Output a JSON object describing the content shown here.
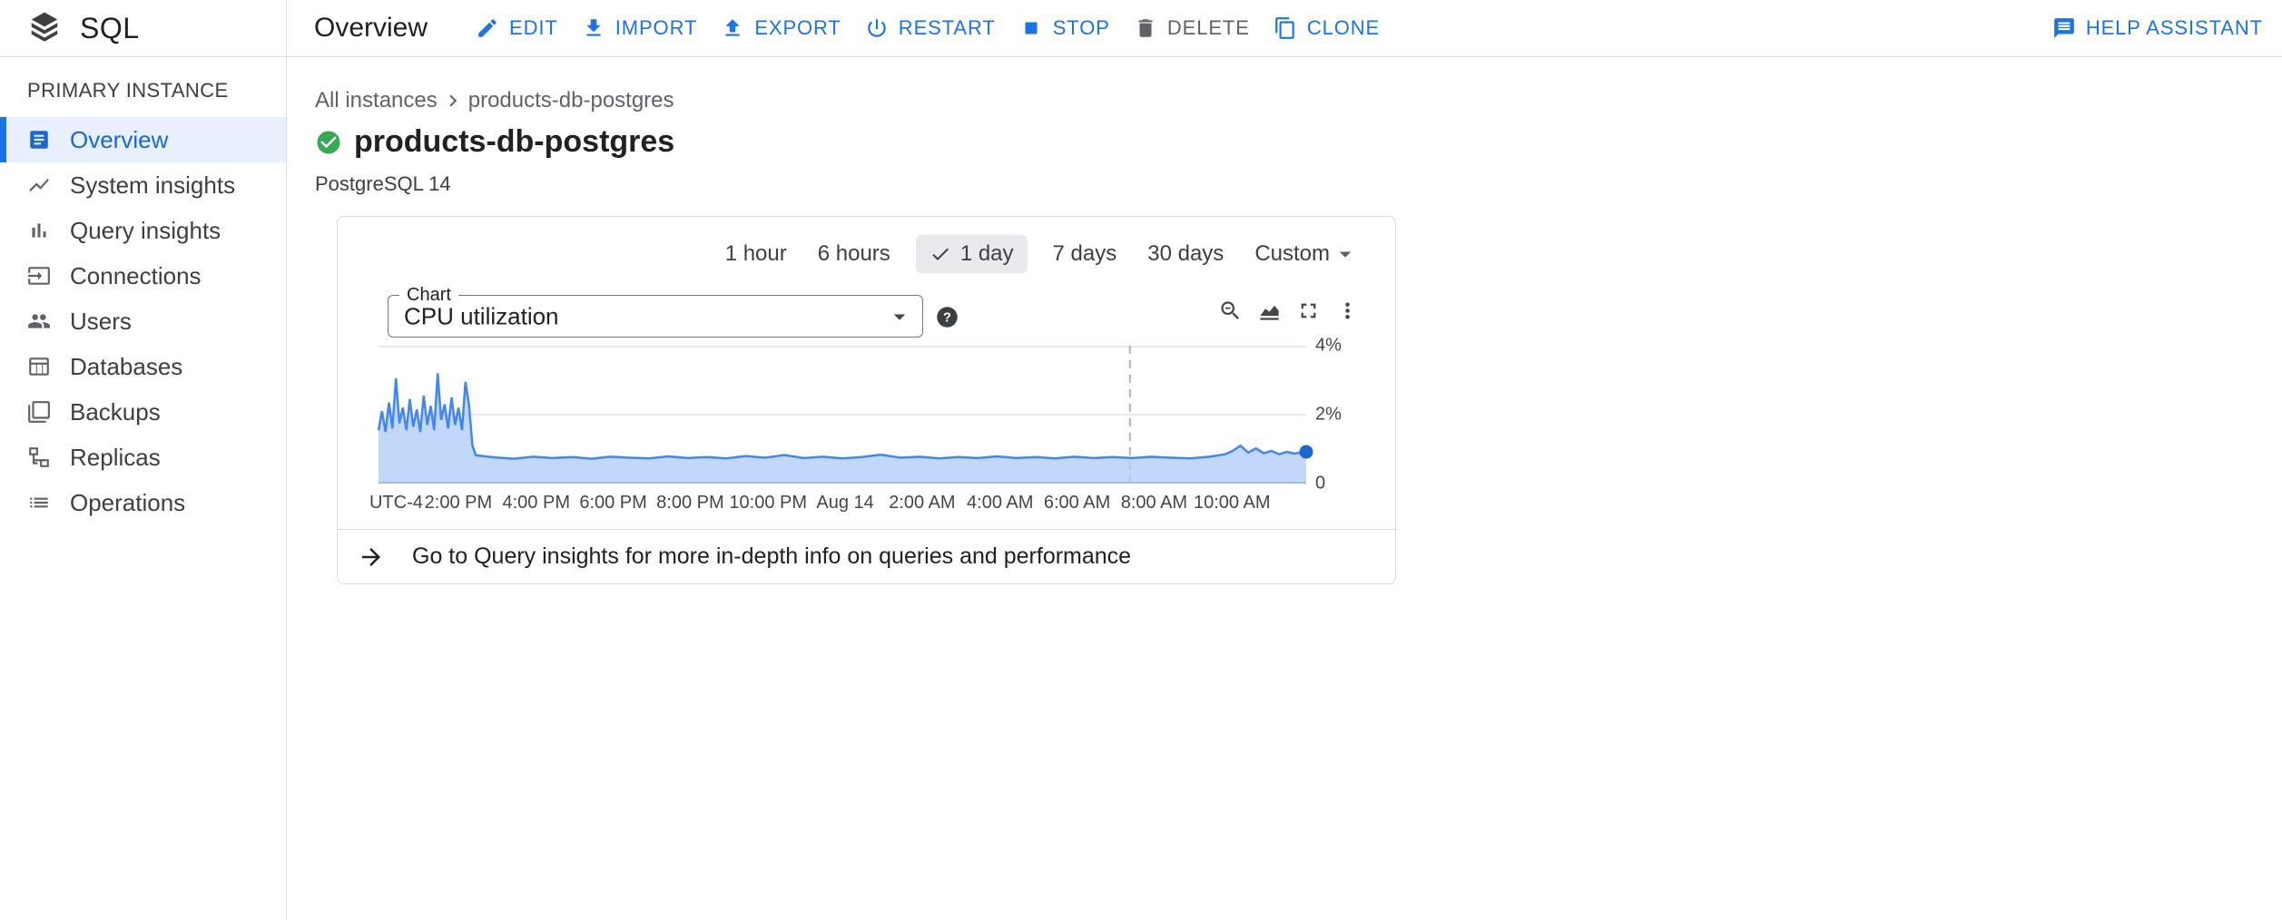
{
  "topbar": {
    "product": "SQL",
    "page_title": "Overview",
    "actions": [
      {
        "label": "EDIT",
        "icon": "edit-icon",
        "enabled": true
      },
      {
        "label": "IMPORT",
        "icon": "import-icon",
        "enabled": true
      },
      {
        "label": "EXPORT",
        "icon": "export-icon",
        "enabled": true
      },
      {
        "label": "RESTART",
        "icon": "restart-icon",
        "enabled": true
      },
      {
        "label": "STOP",
        "icon": "stop-icon",
        "enabled": true
      },
      {
        "label": "DELETE",
        "icon": "delete-icon",
        "enabled": false
      },
      {
        "label": "CLONE",
        "icon": "clone-icon",
        "enabled": true
      }
    ],
    "help_assistant": {
      "label": "HELP ASSISTANT",
      "icon": "help-assistant-icon"
    }
  },
  "sidebar": {
    "heading": "PRIMARY INSTANCE",
    "items": [
      {
        "label": "Overview",
        "icon": "overview-icon",
        "selected": true
      },
      {
        "label": "System insights",
        "icon": "system-insights-icon",
        "selected": false
      },
      {
        "label": "Query insights",
        "icon": "query-insights-icon",
        "selected": false
      },
      {
        "label": "Connections",
        "icon": "connections-icon",
        "selected": false
      },
      {
        "label": "Users",
        "icon": "users-icon",
        "selected": false
      },
      {
        "label": "Databases",
        "icon": "databases-icon",
        "selected": false
      },
      {
        "label": "Backups",
        "icon": "backups-icon",
        "selected": false
      },
      {
        "label": "Replicas",
        "icon": "replicas-icon",
        "selected": false
      },
      {
        "label": "Operations",
        "icon": "operations-icon",
        "selected": false
      }
    ]
  },
  "main": {
    "breadcrumb": {
      "parent": "All instances",
      "current": "products-db-postgres"
    },
    "instance": {
      "name": "products-db-postgres",
      "status": "healthy",
      "engine": "PostgreSQL 14"
    },
    "time_ranges": {
      "options": [
        {
          "label": "1 hour",
          "selected": false
        },
        {
          "label": "6 hours",
          "selected": false
        },
        {
          "label": "1 day",
          "selected": true
        },
        {
          "label": "7 days",
          "selected": false
        },
        {
          "label": "30 days",
          "selected": false
        },
        {
          "label": "Custom",
          "selected": false,
          "dropdown": true
        }
      ]
    },
    "chart_card": {
      "select_label": "Chart",
      "selected_metric": "CPU utilization",
      "tools": [
        "zoom-reset",
        "chart-type",
        "fullscreen",
        "more-options"
      ]
    },
    "footer_link": "Go to Query insights for more in-depth info on queries and performance"
  },
  "colors": {
    "accent_blue": "#1a73e8",
    "selected_nav_bg": "#e8f0fe",
    "status_green": "#34a853",
    "chart_line": "#4285f4",
    "chart_fill": "#aecbfa",
    "border": "#dadce0"
  },
  "chart_data": {
    "type": "area",
    "title": "CPU utilization",
    "unit": "%",
    "ylim": [
      0,
      4
    ],
    "y_axis_side": "right",
    "y_ticks": [
      {
        "label": "4%",
        "value": 4
      },
      {
        "label": "2%",
        "value": 2
      },
      {
        "label": "0",
        "value": 0
      }
    ],
    "x_span_hours": 24,
    "x_ticks": [
      {
        "label": "UTC-4",
        "pos": 0.019
      },
      {
        "label": "2:00 PM",
        "pos": 0.086
      },
      {
        "label": "4:00 PM",
        "pos": 0.17
      },
      {
        "label": "6:00 PM",
        "pos": 0.253
      },
      {
        "label": "8:00 PM",
        "pos": 0.336
      },
      {
        "label": "10:00 PM",
        "pos": 0.42
      },
      {
        "label": "Aug 14",
        "pos": 0.503
      },
      {
        "label": "2:00 AM",
        "pos": 0.586
      },
      {
        "label": "4:00 AM",
        "pos": 0.67
      },
      {
        "label": "6:00 AM",
        "pos": 0.753
      },
      {
        "label": "8:00 AM",
        "pos": 0.836
      },
      {
        "label": "10:00 AM",
        "pos": 0.92
      }
    ],
    "cursor_pos": 0.81,
    "series": [
      {
        "name": "CPU utilization",
        "points_hours_pct": [
          [
            0,
            1.55
          ],
          [
            0.09,
            2.1
          ],
          [
            0.18,
            1.5
          ],
          [
            0.27,
            2.35
          ],
          [
            0.36,
            1.6
          ],
          [
            0.45,
            3.05
          ],
          [
            0.54,
            1.75
          ],
          [
            0.63,
            2.2
          ],
          [
            0.72,
            1.55
          ],
          [
            0.81,
            2.45
          ],
          [
            0.9,
            1.65
          ],
          [
            0.99,
            2.15
          ],
          [
            1.08,
            1.5
          ],
          [
            1.17,
            2.55
          ],
          [
            1.26,
            1.7
          ],
          [
            1.35,
            2.25
          ],
          [
            1.44,
            1.55
          ],
          [
            1.53,
            3.2
          ],
          [
            1.62,
            1.85
          ],
          [
            1.71,
            2.3
          ],
          [
            1.8,
            1.6
          ],
          [
            1.89,
            2.5
          ],
          [
            1.98,
            1.7
          ],
          [
            2.07,
            2.2
          ],
          [
            2.16,
            1.55
          ],
          [
            2.25,
            2.95
          ],
          [
            2.34,
            2.3
          ],
          [
            2.43,
            1.1
          ],
          [
            2.52,
            0.82
          ],
          [
            3,
            0.76
          ],
          [
            3.5,
            0.72
          ],
          [
            4,
            0.78
          ],
          [
            4.5,
            0.74
          ],
          [
            5,
            0.77
          ],
          [
            5.5,
            0.72
          ],
          [
            6,
            0.78
          ],
          [
            6.5,
            0.75
          ],
          [
            7,
            0.73
          ],
          [
            7.5,
            0.79
          ],
          [
            8,
            0.74
          ],
          [
            8.5,
            0.77
          ],
          [
            9,
            0.73
          ],
          [
            9.5,
            0.8
          ],
          [
            10,
            0.75
          ],
          [
            10.5,
            0.83
          ],
          [
            11,
            0.74
          ],
          [
            11.5,
            0.78
          ],
          [
            12,
            0.73
          ],
          [
            12.5,
            0.77
          ],
          [
            13,
            0.84
          ],
          [
            13.5,
            0.75
          ],
          [
            14,
            0.78
          ],
          [
            14.5,
            0.73
          ],
          [
            15,
            0.77
          ],
          [
            15.5,
            0.74
          ],
          [
            16,
            0.79
          ],
          [
            16.5,
            0.74
          ],
          [
            17,
            0.77
          ],
          [
            17.5,
            0.73
          ],
          [
            18,
            0.78
          ],
          [
            18.5,
            0.74
          ],
          [
            19,
            0.77
          ],
          [
            19.5,
            0.74
          ],
          [
            20,
            0.78
          ],
          [
            20.5,
            0.75
          ],
          [
            21,
            0.73
          ],
          [
            21.5,
            0.78
          ],
          [
            21.9,
            0.85
          ],
          [
            22.1,
            0.95
          ],
          [
            22.3,
            1.1
          ],
          [
            22.5,
            0.9
          ],
          [
            22.7,
            1.02
          ],
          [
            22.9,
            0.88
          ],
          [
            23.1,
            0.95
          ],
          [
            23.3,
            0.85
          ],
          [
            23.5,
            0.92
          ],
          [
            23.7,
            0.87
          ],
          [
            24,
            0.92
          ]
        ]
      }
    ]
  }
}
